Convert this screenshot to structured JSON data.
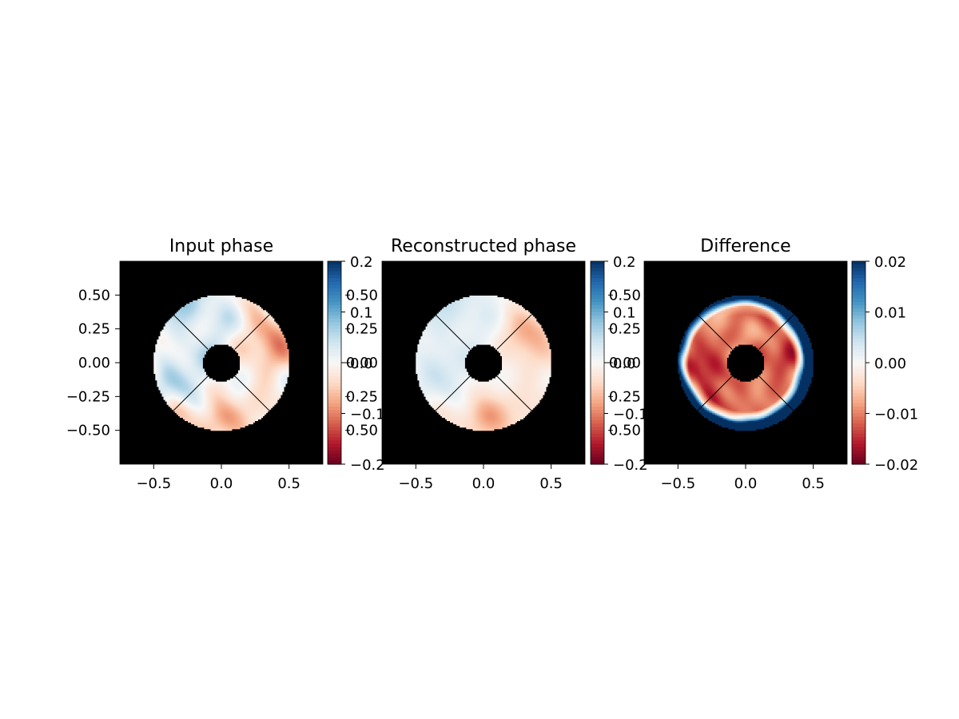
{
  "chart_data": [
    {
      "type": "heatmap",
      "title": "Input phase",
      "xlim": [
        -0.75,
        0.75
      ],
      "ylim": [
        -0.75,
        0.75
      ],
      "x_ticks": [
        "−0.5",
        "0.0",
        "0.5"
      ],
      "y_ticks": [
        "0.50",
        "0.25",
        "0.00",
        "−0.25",
        "−0.50"
      ],
      "pupil": {
        "outer_radius": 0.5,
        "inner_radius": 0.14,
        "spider_angles_deg": [
          45,
          135,
          225,
          315
        ],
        "background": "#000000"
      },
      "colormap": "RdBu",
      "pattern": "low-amplitude turbulence; bluish (positive) on left, reddish (negative) at bottom and top-right",
      "colorbar": {
        "range": [
          -0.2,
          0.2
        ],
        "ticks": [
          "0.2",
          "0.1",
          "0.0",
          "−0.1",
          "−0.2"
        ]
      },
      "overlapping_labels": [
        "0.50",
        "0.25",
        "0.00",
        "0.25",
        "0.50"
      ]
    },
    {
      "type": "heatmap",
      "title": "Reconstructed phase",
      "xlim": [
        -0.75,
        0.75
      ],
      "ylim": [
        -0.75,
        0.75
      ],
      "x_ticks": [
        "−0.5",
        "0.0",
        "0.5"
      ],
      "pupil": {
        "outer_radius": 0.5,
        "inner_radius": 0.14,
        "spider_angles_deg": [
          45,
          135,
          225,
          315
        ],
        "background": "#000000"
      },
      "colormap": "RdBu",
      "pattern": "smoothed version of input phase",
      "colorbar": {
        "range": [
          -0.2,
          0.2
        ],
        "ticks": [
          "0.2",
          "0.1",
          "0.0",
          "−0.1",
          "−0.2"
        ]
      },
      "overlapping_labels": [
        "0.50",
        "0.25",
        "0.00",
        "0.25",
        "0.50"
      ]
    },
    {
      "type": "heatmap",
      "title": "Difference",
      "xlim": [
        -0.75,
        0.75
      ],
      "ylim": [
        -0.75,
        0.75
      ],
      "x_ticks": [
        "−0.5",
        "0.0",
        "0.5"
      ],
      "pupil": {
        "outer_radius": 0.5,
        "inner_radius": 0.14,
        "spider_angles_deg": [
          45,
          135,
          225,
          315
        ],
        "background": "#000000"
      },
      "colormap": "RdBu",
      "pattern": "strongly negative (red) in the interior, left-lower side darkest; strongly positive (blue) along outer rim, mostly right and bottom",
      "colorbar": {
        "range": [
          -0.02,
          0.02
        ],
        "ticks": [
          "0.02",
          "0.01",
          "0.00",
          "−0.01",
          "−0.02"
        ]
      }
    }
  ],
  "colors": {
    "red_end": "#67001f",
    "blue_end": "#053061",
    "mid": "#f7f7f7",
    "background": "#000000"
  }
}
